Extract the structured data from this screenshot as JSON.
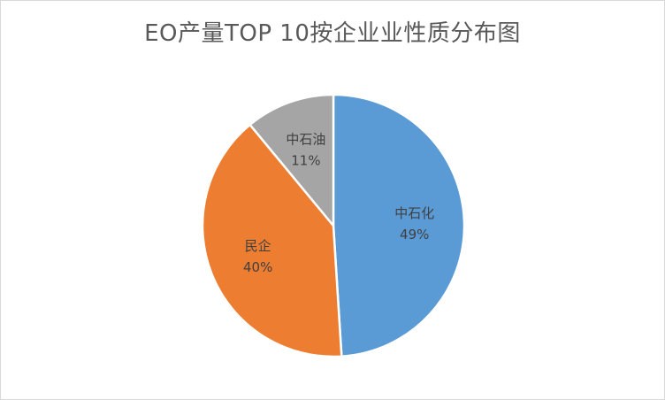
{
  "chart_data": {
    "type": "pie",
    "title": "EO产量TOP 10按企业业性质分布图",
    "start_angle_deg": 0,
    "direction": "clockwise",
    "slices": [
      {
        "label": "中石化",
        "value": 49,
        "display": "49%",
        "color": "#5B9BD5"
      },
      {
        "label": "民企",
        "value": 40,
        "display": "40%",
        "color": "#ED7D31"
      },
      {
        "label": "中石油",
        "value": 11,
        "display": "11%",
        "color": "#A5A5A5"
      }
    ],
    "legend": "none",
    "data_labels": "inside"
  }
}
